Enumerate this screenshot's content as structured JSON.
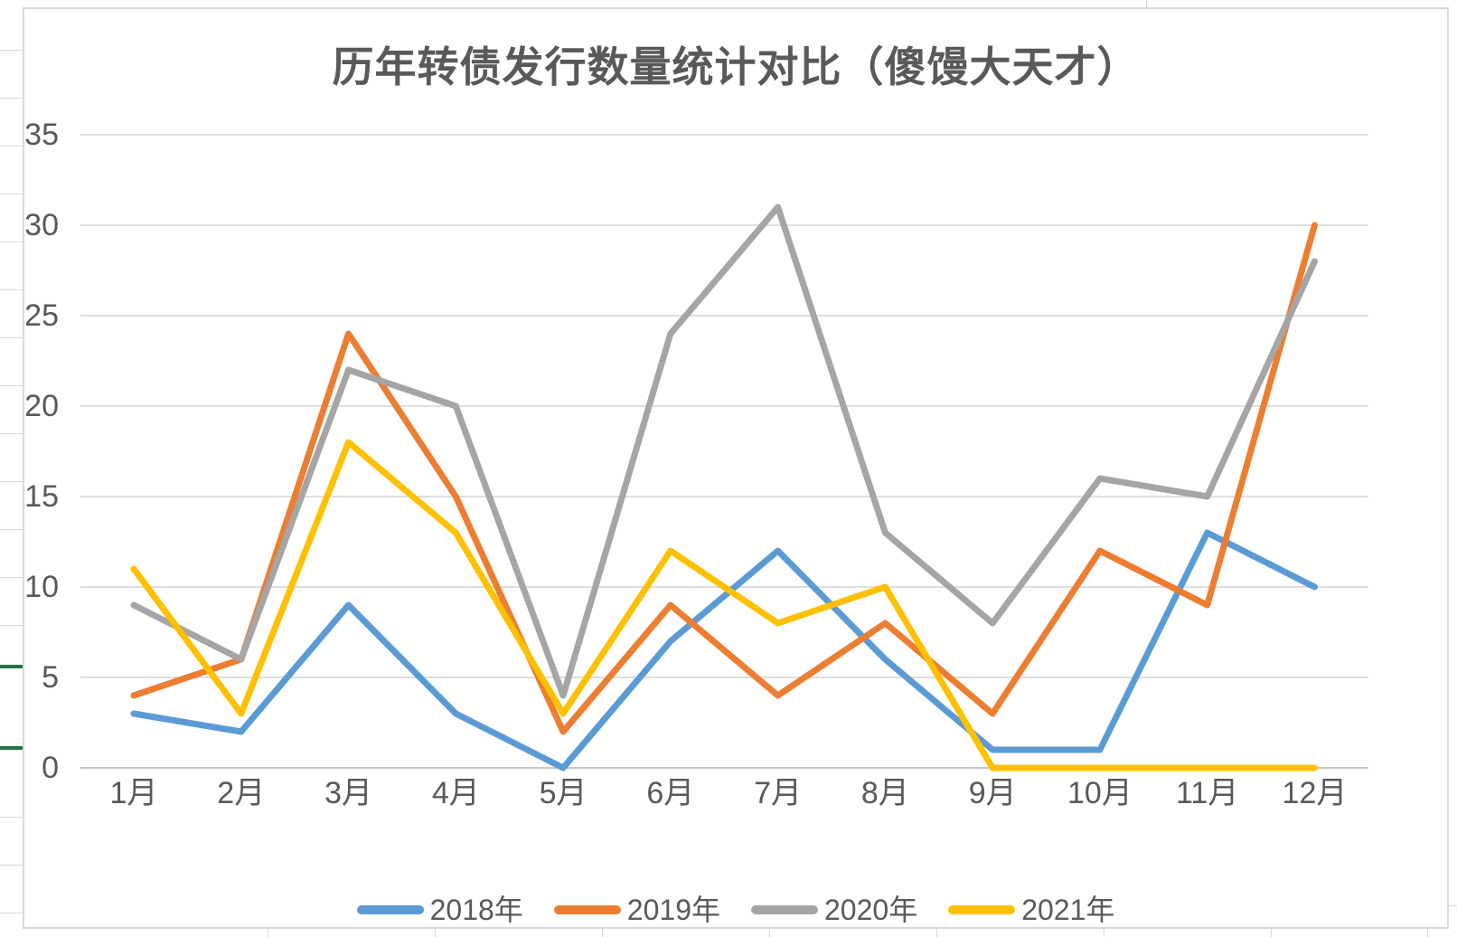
{
  "title": "历年转债发行数量统计对比（傻馒大天才）",
  "chart_data": {
    "type": "line",
    "title": "历年转债发行数量统计对比（傻馒大天才）",
    "categories": [
      "1月",
      "2月",
      "3月",
      "4月",
      "5月",
      "6月",
      "7月",
      "8月",
      "9月",
      "10月",
      "11月",
      "12月"
    ],
    "series": [
      {
        "name": "2018年",
        "color": "#5B9BD5",
        "values": [
          3,
          2,
          9,
          3,
          0,
          7,
          12,
          6,
          1,
          1,
          13,
          10
        ]
      },
      {
        "name": "2019年",
        "color": "#ED7D31",
        "values": [
          4,
          6,
          24,
          15,
          2,
          9,
          4,
          8,
          3,
          12,
          9,
          30
        ]
      },
      {
        "name": "2020年",
        "color": "#A5A5A5",
        "values": [
          9,
          6,
          22,
          20,
          4,
          24,
          31,
          13,
          8,
          16,
          15,
          28
        ]
      },
      {
        "name": "2021年",
        "color": "#FFC000",
        "values": [
          11,
          3,
          18,
          13,
          3,
          12,
          8,
          10,
          0,
          0,
          0,
          0
        ]
      }
    ],
    "ylim": [
      0,
      35
    ],
    "ytick_step": 5,
    "ytick_labels": [
      "0",
      "5",
      "10",
      "15",
      "20",
      "25",
      "30",
      "35"
    ],
    "xlabel": "",
    "ylabel": "",
    "grid": "horizontal",
    "legend_position": "bottom"
  },
  "colors": {
    "gridline": "#D9D9D9",
    "baseline": "#BFBFBF",
    "text": "#595959",
    "frame_border": "#D9D9D9",
    "sheet_gridline": "#D9D9D9",
    "sheet_accent_green": "#217346"
  }
}
